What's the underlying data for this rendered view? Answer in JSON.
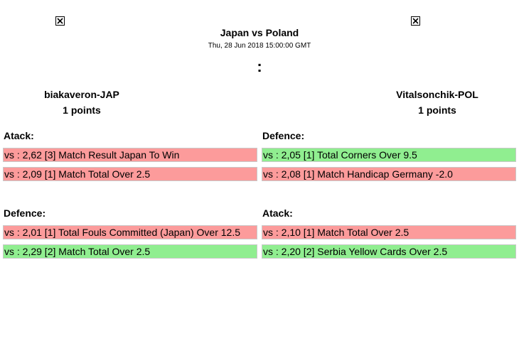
{
  "match": {
    "title": "Japan vs Poland",
    "date": "Thu, 28 Jun 2018 15:00:00 GMT",
    "score": ":"
  },
  "players": [
    {
      "name": "biakaveron-JAP",
      "points": "1 points"
    },
    {
      "name": "Vitalsonchik-POL",
      "points": "1 points"
    }
  ],
  "rounds": [
    {
      "left": {
        "title": "Atack:",
        "bets": [
          {
            "text": "vs : 2,62 [3] Match Result Japan To Win",
            "status": "lose"
          },
          {
            "text": "vs : 2,09 [1] Match Total Over 2.5",
            "status": "lose"
          }
        ]
      },
      "right": {
        "title": "Defence:",
        "bets": [
          {
            "text": "vs : 2,05 [1] Total Corners Over 9.5",
            "status": "win"
          },
          {
            "text": "vs : 2,08 [1] Match Handicap Germany -2.0",
            "status": "lose"
          }
        ]
      }
    },
    {
      "left": {
        "title": "Defence:",
        "bets": [
          {
            "text": "vs : 2,01 [1] Total Fouls Committed (Japan) Over 12.5",
            "status": "lose"
          },
          {
            "text": "vs : 2,29 [2] Match Total Over 2.5",
            "status": "win"
          }
        ]
      },
      "right": {
        "title": "Atack:",
        "bets": [
          {
            "text": "vs : 2,10 [1] Match Total Over 2.5",
            "status": "lose"
          },
          {
            "text": "vs : 2,20 [2] Serbia Yellow Cards Over 2.5",
            "status": "win"
          }
        ]
      }
    }
  ],
  "colors": {
    "lose": "#fc9b9b",
    "win": "#90ee90"
  },
  "icons": {
    "flag_left": "broken-image-icon",
    "flag_right": "broken-image-icon"
  }
}
